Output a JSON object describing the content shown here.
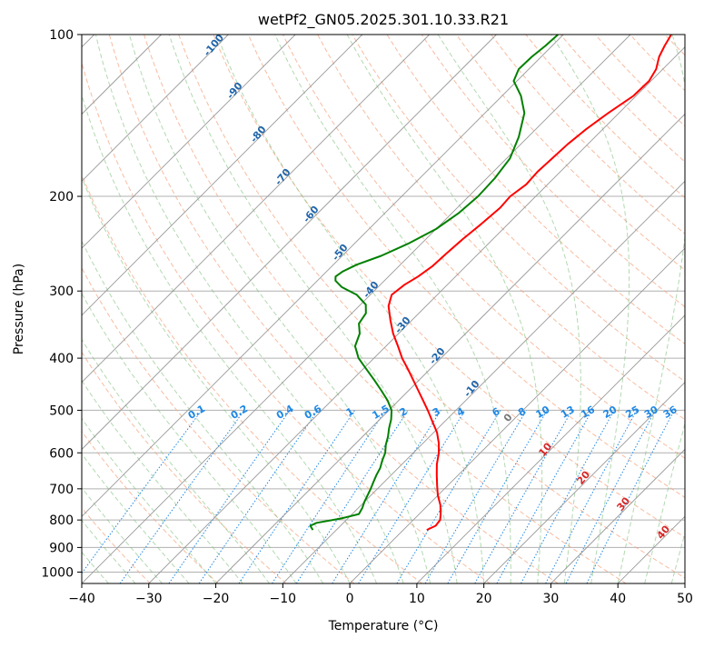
{
  "chart_data": {
    "type": "skew-t log-p sounding",
    "title": "wetPf2_GN05.2025.301.10.33.R21",
    "xlabel": "Temperature (°C)",
    "ylabel": "Pressure (hPa)",
    "xlim": [
      -40,
      50
    ],
    "ylim_hpa": [
      1050,
      100
    ],
    "y_scale": "log",
    "grid": true,
    "x_ticks": [
      -40,
      -30,
      -20,
      -10,
      0,
      10,
      20,
      30,
      40,
      50
    ],
    "x_tick_labels": [
      "−40",
      "−30",
      "−20",
      "−10",
      "0",
      "10",
      "20",
      "30",
      "40",
      "50"
    ],
    "y_ticks": [
      1000,
      900,
      800,
      700,
      600,
      500,
      400,
      300,
      200,
      100
    ],
    "y_tick_labels": [
      "1000",
      "900",
      "800",
      "700",
      "600",
      "500",
      "400",
      "300",
      "200",
      "100"
    ],
    "series": [
      {
        "color": "#ff0000",
        "p": [
          835,
          820,
          800,
          780,
          750,
          720,
          690,
          660,
          630,
          600,
          575,
          550,
          525,
          500,
          480,
          460,
          440,
          420,
          400,
          380,
          360,
          340,
          320,
          305,
          292,
          282,
          270,
          255,
          240,
          225,
          210,
          200,
          190,
          180,
          170,
          160,
          150,
          140,
          130,
          122,
          116,
          110,
          105,
          100
        ],
        "t": [
          3.5,
          4.2,
          4.0,
          3.2,
          1.8,
          0.0,
          -1.6,
          -3.2,
          -4.8,
          -6.2,
          -7.7,
          -9.5,
          -11.8,
          -14.2,
          -16.3,
          -18.5,
          -20.8,
          -23.2,
          -25.8,
          -28.2,
          -30.8,
          -33.2,
          -35.6,
          -36.8,
          -36.4,
          -35.6,
          -35.0,
          -34.8,
          -34.5,
          -34.0,
          -33.6,
          -33.8,
          -33.2,
          -33.4,
          -33.2,
          -33.0,
          -32.5,
          -31.6,
          -30.4,
          -30.3,
          -31.0,
          -32.4,
          -33.2,
          -33.9
        ]
      },
      {
        "color": "#008000",
        "p": [
          835,
          820,
          810,
          795,
          780,
          760,
          740,
          720,
          700,
          680,
          660,
          640,
          620,
          600,
          580,
          560,
          540,
          520,
          500,
          480,
          460,
          440,
          420,
          400,
          380,
          360,
          345,
          330,
          318,
          305,
          295,
          287,
          282,
          276,
          268,
          258,
          245,
          230,
          215,
          200,
          185,
          170,
          155,
          140,
          130,
          122,
          116,
          110,
          105,
          100
        ],
        "t": [
          -13.5,
          -14.5,
          -14.0,
          -11.0,
          -9.0,
          -9.4,
          -10.0,
          -10.5,
          -11.0,
          -11.6,
          -12.2,
          -12.7,
          -13.5,
          -14.2,
          -15.3,
          -16.2,
          -17.3,
          -18.3,
          -19.6,
          -21.6,
          -24.0,
          -26.6,
          -29.4,
          -32.3,
          -34.6,
          -35.8,
          -37.4,
          -37.9,
          -39.2,
          -42.0,
          -45.4,
          -47.3,
          -47.9,
          -47.6,
          -46.5,
          -44.2,
          -42.0,
          -40.0,
          -39.0,
          -38.6,
          -38.8,
          -39.5,
          -41.4,
          -44.1,
          -47.2,
          -50.5,
          -51.5,
          -51.4,
          -51.0,
          -50.8
        ]
      }
    ],
    "dry_adiabat_labels": [
      "-100",
      "-90",
      "-80",
      "-70",
      "-60",
      "-50",
      "-40",
      "-30",
      "-20",
      "-10",
      "0",
      "10",
      "20",
      "30",
      "40"
    ],
    "mixing_ratio_labels": [
      "0.1",
      "0.2",
      "0.4",
      "0.6",
      "1",
      "1.5",
      "2",
      "3",
      "4",
      "6",
      "8",
      "10",
      "13",
      "16",
      "20",
      "25",
      "30",
      "36"
    ]
  },
  "colors": {
    "temperature": "#ff0000",
    "dewpoint": "#008000",
    "dry_adiabat": "#f4a582",
    "moist_adiabat": "#7fbf7b",
    "mixing_ratio": "#1e88e5",
    "isotherm": "#999999",
    "dry_label_cold": "#2166ac",
    "dry_label_warm": "#d62728"
  }
}
